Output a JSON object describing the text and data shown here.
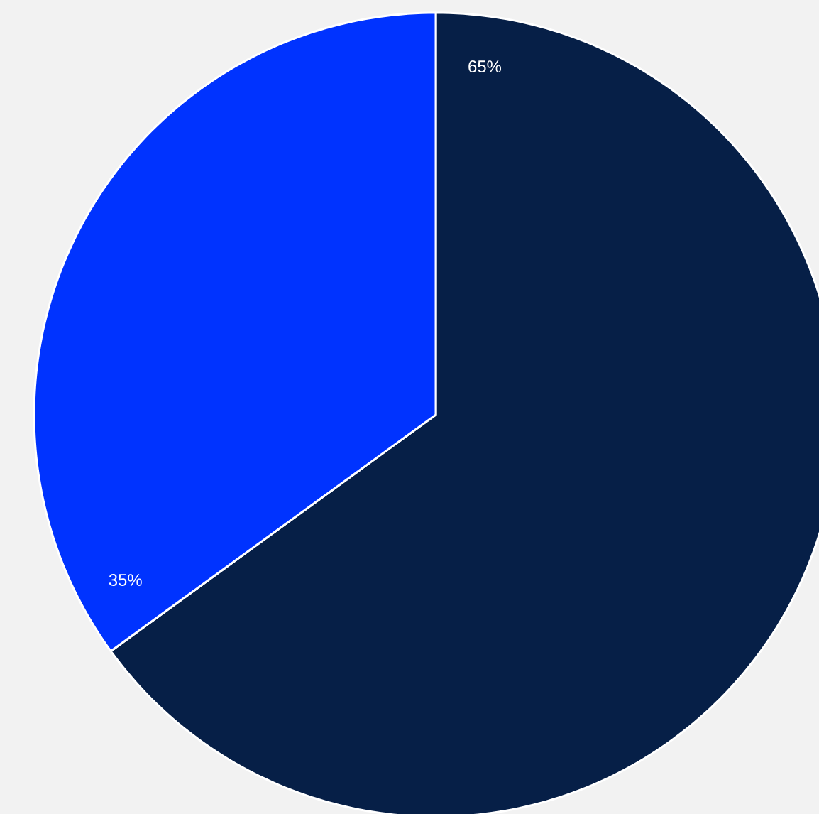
{
  "chart_data": {
    "type": "pie",
    "categories": [
      null,
      null
    ],
    "values": [
      65,
      35
    ],
    "colors": [
      "#061f47",
      "#0033ff"
    ],
    "value_labels": [
      "65%",
      "35%"
    ]
  }
}
